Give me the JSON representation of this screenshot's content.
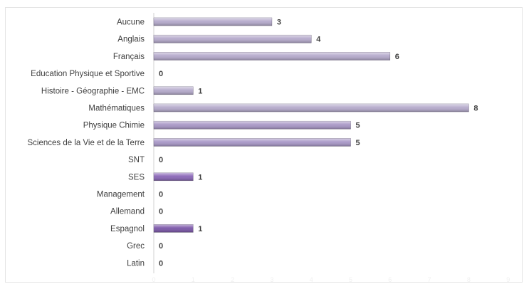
{
  "chart_data": {
    "type": "bar",
    "orientation": "horizontal",
    "categories": [
      "Aucune",
      "Anglais",
      "Français",
      "Education Physique et Sportive",
      "Histoire - Géographie - EMC",
      "Mathématiques",
      "Physique Chimie ",
      "Sciences de la Vie et de la Terre ",
      "SNT",
      "SES",
      "Management ",
      "Allemand",
      "Espagnol",
      "Grec",
      "Latin"
    ],
    "values": [
      3,
      4,
      6,
      0,
      1,
      8,
      5,
      5,
      0,
      1,
      0,
      0,
      1,
      0,
      0
    ],
    "bar_colors": [
      "#b4a9cb",
      "#b4a9cb",
      "#b4a9cb",
      "#b4a9cb",
      "#b4a9cb",
      "#b4a9cb",
      "#a796c6",
      "#a796c6",
      "#a796c6",
      "#8864b6",
      "#8864b6",
      "#8864b6",
      "#7a55a8",
      "#7a55a8",
      "#7a55a8"
    ],
    "xlim": [
      0,
      9
    ],
    "x_ticks": [
      "0",
      "1",
      "2",
      "3",
      "4",
      "5",
      "6",
      "7",
      "8",
      "9"
    ],
    "grid": false,
    "legend": "none",
    "data_labels": true,
    "title": "",
    "xlabel": "",
    "ylabel": ""
  }
}
